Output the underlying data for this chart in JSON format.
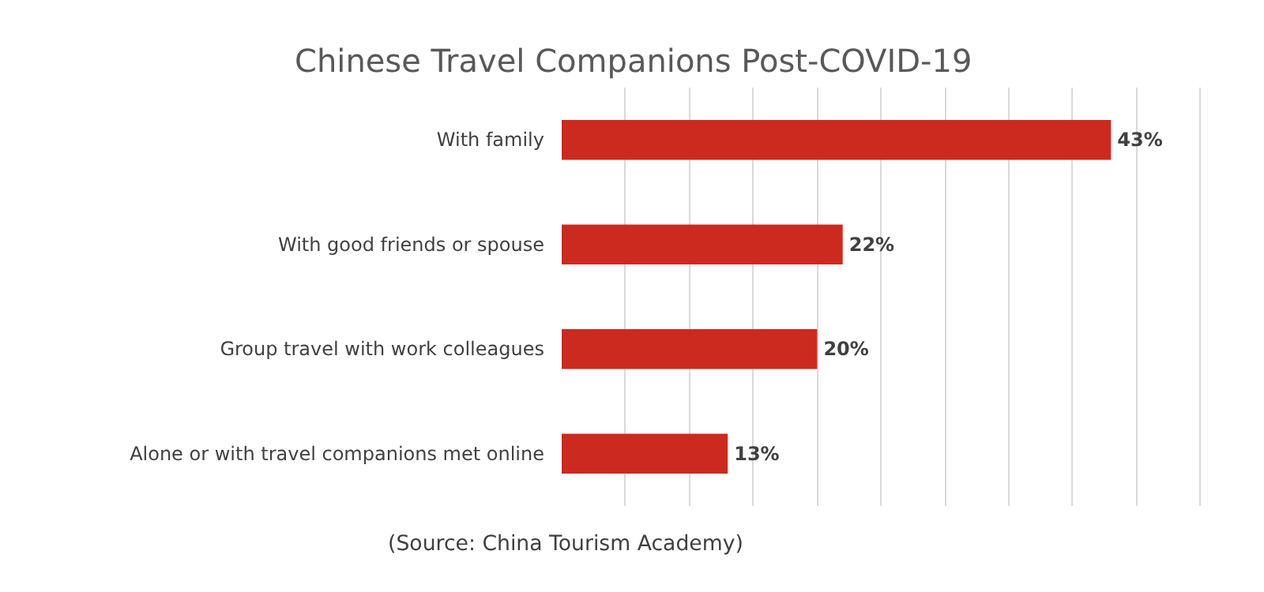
{
  "chart_data": {
    "type": "bar",
    "orientation": "horizontal",
    "title": "Chinese Travel Companions Post-COVID-19",
    "categories": [
      "With family",
      "With good friends or spouse",
      "Group travel with work colleagues",
      "Alone or with travel companions met online"
    ],
    "values": [
      43,
      22,
      20,
      13
    ],
    "value_labels": [
      "43%",
      "22%",
      "20%",
      "13%"
    ],
    "color": "#cc2a1f",
    "tick_labels": "y",
    "grid": "x",
    "annotations": [
      "(Source: China Tourism Academy)"
    ]
  }
}
